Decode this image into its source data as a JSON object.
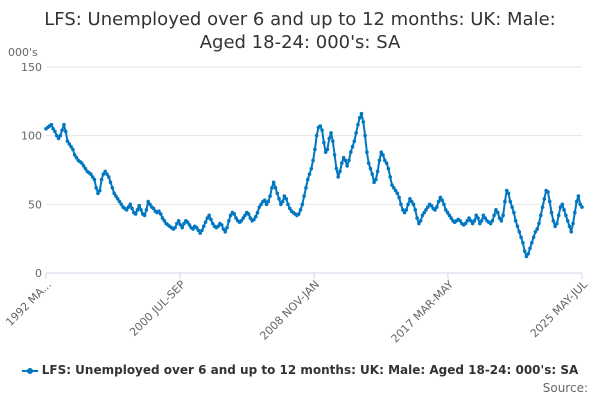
{
  "title_lines": [
    "LFS: Unemployed over 6 and up to 12 months: UK: Male:",
    "Aged 18-24: 000's: SA"
  ],
  "source_label": "Source:",
  "colors": {
    "series": "#0077c0",
    "grid": "#e6e6e6",
    "axis": "#ccd6eb"
  },
  "chart_data": {
    "type": "line",
    "title": "LFS: Unemployed over 6 and up to 12 months: UK: Male: Aged 18-24: 000's: SA",
    "ylabel": "000's",
    "ylim": [
      0,
      150
    ],
    "yticks": [
      0,
      50,
      100,
      150
    ],
    "x_tick_labels": [
      "1992 MA...",
      "2000 JUL-SEP",
      "2008 NOV-JAN",
      "2017 MAR-MAY",
      "2025 MAY-JUL"
    ],
    "x_tick_positions": [
      0,
      100,
      200,
      300,
      400
    ],
    "legend_position": "bottom",
    "grid": true,
    "series": [
      {
        "name": "LFS: Unemployed over 6 and up to 12 months: UK: Male: Aged 18-24: 000's: SA",
        "points": [
          [
            0,
            105
          ],
          [
            1,
            106
          ],
          [
            2,
            107
          ],
          [
            3,
            108
          ],
          [
            4,
            105
          ],
          [
            5,
            103
          ],
          [
            6,
            100
          ],
          [
            7,
            98
          ],
          [
            8,
            100
          ],
          [
            9,
            104
          ],
          [
            10,
            108
          ],
          [
            11,
            103
          ],
          [
            12,
            96
          ],
          [
            13,
            94
          ],
          [
            14,
            92
          ],
          [
            15,
            90
          ],
          [
            16,
            86
          ],
          [
            17,
            84
          ],
          [
            18,
            82
          ],
          [
            19,
            81
          ],
          [
            20,
            80
          ],
          [
            21,
            78
          ],
          [
            22,
            76
          ],
          [
            23,
            74
          ],
          [
            24,
            73
          ],
          [
            25,
            72
          ],
          [
            26,
            70
          ],
          [
            27,
            68
          ],
          [
            28,
            62
          ],
          [
            29,
            58
          ],
          [
            30,
            60
          ],
          [
            31,
            68
          ],
          [
            32,
            72
          ],
          [
            33,
            74
          ],
          [
            34,
            72
          ],
          [
            35,
            70
          ],
          [
            36,
            66
          ],
          [
            37,
            62
          ],
          [
            38,
            58
          ],
          [
            39,
            56
          ],
          [
            40,
            54
          ],
          [
            41,
            52
          ],
          [
            42,
            50
          ],
          [
            43,
            48
          ],
          [
            44,
            47
          ],
          [
            45,
            46
          ],
          [
            46,
            48
          ],
          [
            47,
            50
          ],
          [
            48,
            47
          ],
          [
            49,
            44
          ],
          [
            50,
            43
          ],
          [
            51,
            46
          ],
          [
            52,
            49
          ],
          [
            53,
            46
          ],
          [
            54,
            43
          ],
          [
            55,
            42
          ],
          [
            56,
            46
          ],
          [
            57,
            52
          ],
          [
            58,
            50
          ],
          [
            59,
            48
          ],
          [
            60,
            47
          ],
          [
            61,
            45
          ],
          [
            62,
            44
          ],
          [
            63,
            45
          ],
          [
            64,
            43
          ],
          [
            65,
            40
          ],
          [
            66,
            38
          ],
          [
            67,
            36
          ],
          [
            68,
            35
          ],
          [
            69,
            34
          ],
          [
            70,
            33
          ],
          [
            71,
            32
          ],
          [
            72,
            33
          ],
          [
            73,
            36
          ],
          [
            74,
            38
          ],
          [
            75,
            35
          ],
          [
            76,
            33
          ],
          [
            77,
            36
          ],
          [
            78,
            38
          ],
          [
            79,
            37
          ],
          [
            80,
            35
          ],
          [
            81,
            33
          ],
          [
            82,
            32
          ],
          [
            83,
            34
          ],
          [
            84,
            33
          ],
          [
            85,
            31
          ],
          [
            86,
            29
          ],
          [
            87,
            31
          ],
          [
            88,
            34
          ],
          [
            89,
            37
          ],
          [
            90,
            40
          ],
          [
            91,
            42
          ],
          [
            92,
            39
          ],
          [
            93,
            36
          ],
          [
            94,
            34
          ],
          [
            95,
            33
          ],
          [
            96,
            34
          ],
          [
            97,
            36
          ],
          [
            98,
            35
          ],
          [
            99,
            32
          ],
          [
            100,
            30
          ],
          [
            101,
            33
          ],
          [
            102,
            38
          ],
          [
            103,
            42
          ],
          [
            104,
            44
          ],
          [
            105,
            43
          ],
          [
            106,
            40
          ],
          [
            107,
            38
          ],
          [
            108,
            37
          ],
          [
            109,
            38
          ],
          [
            110,
            40
          ],
          [
            111,
            42
          ],
          [
            112,
            44
          ],
          [
            113,
            43
          ],
          [
            114,
            40
          ],
          [
            115,
            38
          ],
          [
            116,
            39
          ],
          [
            117,
            41
          ],
          [
            118,
            44
          ],
          [
            119,
            48
          ],
          [
            120,
            50
          ],
          [
            121,
            52
          ],
          [
            122,
            53
          ],
          [
            123,
            50
          ],
          [
            124,
            52
          ],
          [
            125,
            56
          ],
          [
            126,
            62
          ],
          [
            127,
            66
          ],
          [
            128,
            62
          ],
          [
            129,
            58
          ],
          [
            130,
            54
          ],
          [
            131,
            50
          ],
          [
            132,
            52
          ],
          [
            133,
            56
          ],
          [
            134,
            54
          ],
          [
            135,
            50
          ],
          [
            136,
            47
          ],
          [
            137,
            45
          ],
          [
            138,
            44
          ],
          [
            139,
            43
          ],
          [
            140,
            42
          ],
          [
            141,
            43
          ],
          [
            142,
            46
          ],
          [
            143,
            50
          ],
          [
            144,
            56
          ],
          [
            145,
            62
          ],
          [
            146,
            68
          ],
          [
            147,
            72
          ],
          [
            148,
            76
          ],
          [
            149,
            82
          ],
          [
            150,
            90
          ],
          [
            151,
            100
          ],
          [
            152,
            106
          ],
          [
            153,
            107
          ],
          [
            154,
            104
          ],
          [
            155,
            95
          ],
          [
            156,
            88
          ],
          [
            157,
            90
          ],
          [
            158,
            98
          ],
          [
            159,
            102
          ],
          [
            160,
            96
          ],
          [
            161,
            86
          ],
          [
            162,
            76
          ],
          [
            163,
            70
          ],
          [
            164,
            74
          ],
          [
            165,
            80
          ],
          [
            166,
            84
          ],
          [
            167,
            82
          ],
          [
            168,
            78
          ],
          [
            169,
            82
          ],
          [
            170,
            88
          ],
          [
            171,
            92
          ],
          [
            172,
            96
          ],
          [
            173,
            102
          ],
          [
            174,
            108
          ],
          [
            175,
            113
          ],
          [
            176,
            116
          ],
          [
            177,
            110
          ],
          [
            178,
            100
          ],
          [
            179,
            88
          ],
          [
            180,
            80
          ],
          [
            181,
            76
          ],
          [
            182,
            72
          ],
          [
            183,
            66
          ],
          [
            184,
            68
          ],
          [
            185,
            74
          ],
          [
            186,
            82
          ],
          [
            187,
            88
          ],
          [
            188,
            86
          ],
          [
            189,
            82
          ],
          [
            190,
            80
          ],
          [
            191,
            76
          ],
          [
            192,
            70
          ],
          [
            193,
            64
          ],
          [
            194,
            62
          ],
          [
            195,
            60
          ],
          [
            196,
            58
          ],
          [
            197,
            55
          ],
          [
            198,
            50
          ],
          [
            199,
            46
          ],
          [
            200,
            44
          ],
          [
            201,
            46
          ],
          [
            202,
            50
          ],
          [
            203,
            54
          ],
          [
            204,
            52
          ],
          [
            205,
            50
          ],
          [
            206,
            46
          ],
          [
            207,
            40
          ],
          [
            208,
            36
          ],
          [
            209,
            38
          ],
          [
            210,
            42
          ],
          [
            211,
            44
          ],
          [
            212,
            46
          ],
          [
            213,
            48
          ],
          [
            214,
            50
          ],
          [
            215,
            49
          ],
          [
            216,
            47
          ],
          [
            217,
            46
          ],
          [
            218,
            48
          ],
          [
            219,
            52
          ],
          [
            220,
            55
          ],
          [
            221,
            53
          ],
          [
            222,
            50
          ],
          [
            223,
            46
          ],
          [
            224,
            44
          ],
          [
            225,
            42
          ],
          [
            226,
            40
          ],
          [
            227,
            38
          ],
          [
            228,
            37
          ],
          [
            229,
            38
          ],
          [
            230,
            39
          ],
          [
            231,
            38
          ],
          [
            232,
            36
          ],
          [
            233,
            35
          ],
          [
            234,
            36
          ],
          [
            235,
            38
          ],
          [
            236,
            40
          ],
          [
            237,
            38
          ],
          [
            238,
            36
          ],
          [
            239,
            38
          ],
          [
            240,
            42
          ],
          [
            241,
            40
          ],
          [
            242,
            36
          ],
          [
            243,
            38
          ],
          [
            244,
            42
          ],
          [
            245,
            40
          ],
          [
            246,
            38
          ],
          [
            247,
            37
          ],
          [
            248,
            36
          ],
          [
            249,
            38
          ],
          [
            250,
            42
          ],
          [
            251,
            46
          ],
          [
            252,
            44
          ],
          [
            253,
            40
          ],
          [
            254,
            38
          ],
          [
            255,
            42
          ],
          [
            256,
            52
          ],
          [
            257,
            60
          ],
          [
            258,
            58
          ],
          [
            259,
            52
          ],
          [
            260,
            48
          ],
          [
            261,
            44
          ],
          [
            262,
            38
          ],
          [
            263,
            34
          ],
          [
            264,
            30
          ],
          [
            265,
            26
          ],
          [
            266,
            22
          ],
          [
            267,
            16
          ],
          [
            268,
            12
          ],
          [
            269,
            14
          ],
          [
            270,
            18
          ],
          [
            271,
            22
          ],
          [
            272,
            26
          ],
          [
            273,
            30
          ],
          [
            274,
            32
          ],
          [
            275,
            36
          ],
          [
            276,
            42
          ],
          [
            277,
            48
          ],
          [
            278,
            54
          ],
          [
            279,
            60
          ],
          [
            280,
            59
          ],
          [
            281,
            52
          ],
          [
            282,
            44
          ],
          [
            283,
            38
          ],
          [
            284,
            34
          ],
          [
            285,
            36
          ],
          [
            286,
            42
          ],
          [
            287,
            48
          ],
          [
            288,
            50
          ],
          [
            289,
            46
          ],
          [
            290,
            42
          ],
          [
            291,
            38
          ],
          [
            292,
            34
          ],
          [
            293,
            30
          ],
          [
            294,
            36
          ],
          [
            295,
            44
          ],
          [
            296,
            52
          ],
          [
            297,
            56
          ],
          [
            298,
            50
          ],
          [
            299,
            48
          ]
        ]
      }
    ]
  }
}
